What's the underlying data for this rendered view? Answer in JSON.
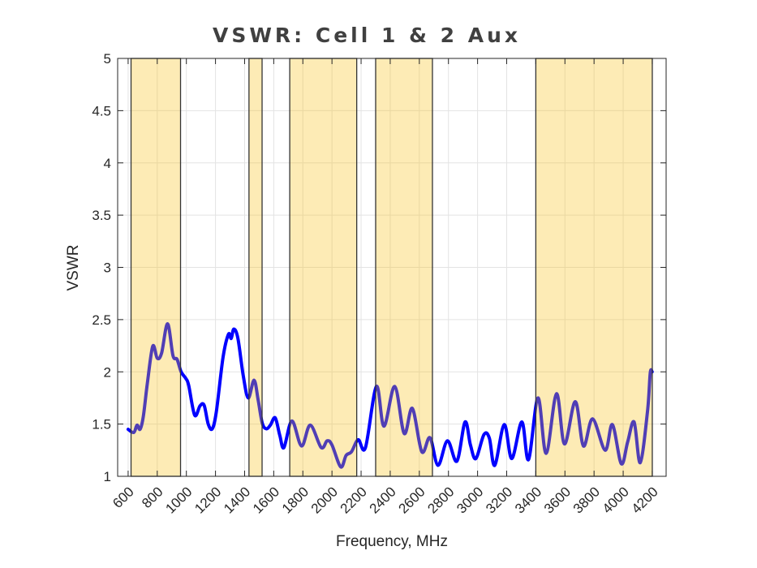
{
  "chart_data": {
    "type": "line",
    "title": "VSWR: Cell 1 & 2 Aux",
    "xlabel": "Frequency, MHz",
    "ylabel": "VSWR",
    "xlim": [
      528,
      4295
    ],
    "ylim": [
      1,
      5
    ],
    "grid": true,
    "xticks": [
      600,
      800,
      1000,
      1200,
      1400,
      1600,
      1800,
      2000,
      2200,
      2400,
      2600,
      2800,
      3000,
      3200,
      3400,
      3600,
      3800,
      4000,
      4200
    ],
    "xtick_labels": [
      "600",
      "800",
      "1000",
      "1200",
      "1400",
      "1600",
      "1800",
      "2000",
      "2200",
      "2400",
      "2600",
      "2800",
      "3000",
      "3200",
      "3400",
      "3600",
      "3800",
      "4000",
      "4200"
    ],
    "yticks": [
      1,
      1.5,
      2,
      2.5,
      3,
      3.5,
      4,
      4.5,
      5
    ],
    "ytick_labels": [
      "1",
      "1.5",
      "2",
      "2.5",
      "3",
      "3.5",
      "4",
      "4.5",
      "5"
    ],
    "bands": [
      [
        620,
        960
      ],
      [
        1430,
        1520
      ],
      [
        1710,
        2170
      ],
      [
        2300,
        2690
      ],
      [
        3400,
        4200
      ]
    ],
    "colors": {
      "line": "#0000ff",
      "band": "#f9c21a",
      "band_edge": "#333333",
      "grid": "#e3e3e3"
    },
    "series": [
      {
        "name": "VSWR",
        "x": [
          600,
          639,
          661,
          682,
          704,
          732,
          769,
          800,
          830,
          871,
          908,
          936,
          964,
          997,
          1016,
          1057,
          1094,
          1122,
          1150,
          1178,
          1206,
          1252,
          1289,
          1308,
          1326,
          1354,
          1391,
          1425,
          1465,
          1493,
          1521,
          1549,
          1577,
          1610,
          1642,
          1670,
          1725,
          1791,
          1851,
          1926,
          1967,
          2000,
          2060,
          2097,
          2134,
          2180,
          2230,
          2305,
          2357,
          2431,
          2496,
          2552,
          2617,
          2673,
          2728,
          2793,
          2858,
          2914,
          2951,
          2988,
          3044,
          3081,
          3118,
          3183,
          3235,
          3304,
          3350,
          3415,
          3471,
          3542,
          3597,
          3671,
          3727,
          3790,
          3876,
          3926,
          3987,
          4031,
          4075,
          4117,
          4167,
          4186,
          4199
        ],
        "y": [
          1.45,
          1.42,
          1.49,
          1.45,
          1.57,
          1.89,
          2.245,
          2.13,
          2.18,
          2.46,
          2.155,
          2.12,
          2.0,
          1.935,
          1.87,
          1.585,
          1.675,
          1.68,
          1.5,
          1.455,
          1.62,
          2.14,
          2.36,
          2.32,
          2.41,
          2.32,
          1.96,
          1.75,
          1.92,
          1.73,
          1.51,
          1.455,
          1.49,
          1.56,
          1.39,
          1.275,
          1.53,
          1.29,
          1.49,
          1.275,
          1.34,
          1.3,
          1.09,
          1.2,
          1.235,
          1.35,
          1.275,
          1.86,
          1.48,
          1.86,
          1.41,
          1.65,
          1.235,
          1.37,
          1.105,
          1.34,
          1.145,
          1.52,
          1.3,
          1.17,
          1.4,
          1.365,
          1.105,
          1.495,
          1.17,
          1.52,
          1.16,
          1.75,
          1.22,
          1.79,
          1.31,
          1.715,
          1.29,
          1.55,
          1.25,
          1.495,
          1.12,
          1.33,
          1.52,
          1.13,
          1.62,
          1.99,
          2.0
        ]
      }
    ]
  }
}
